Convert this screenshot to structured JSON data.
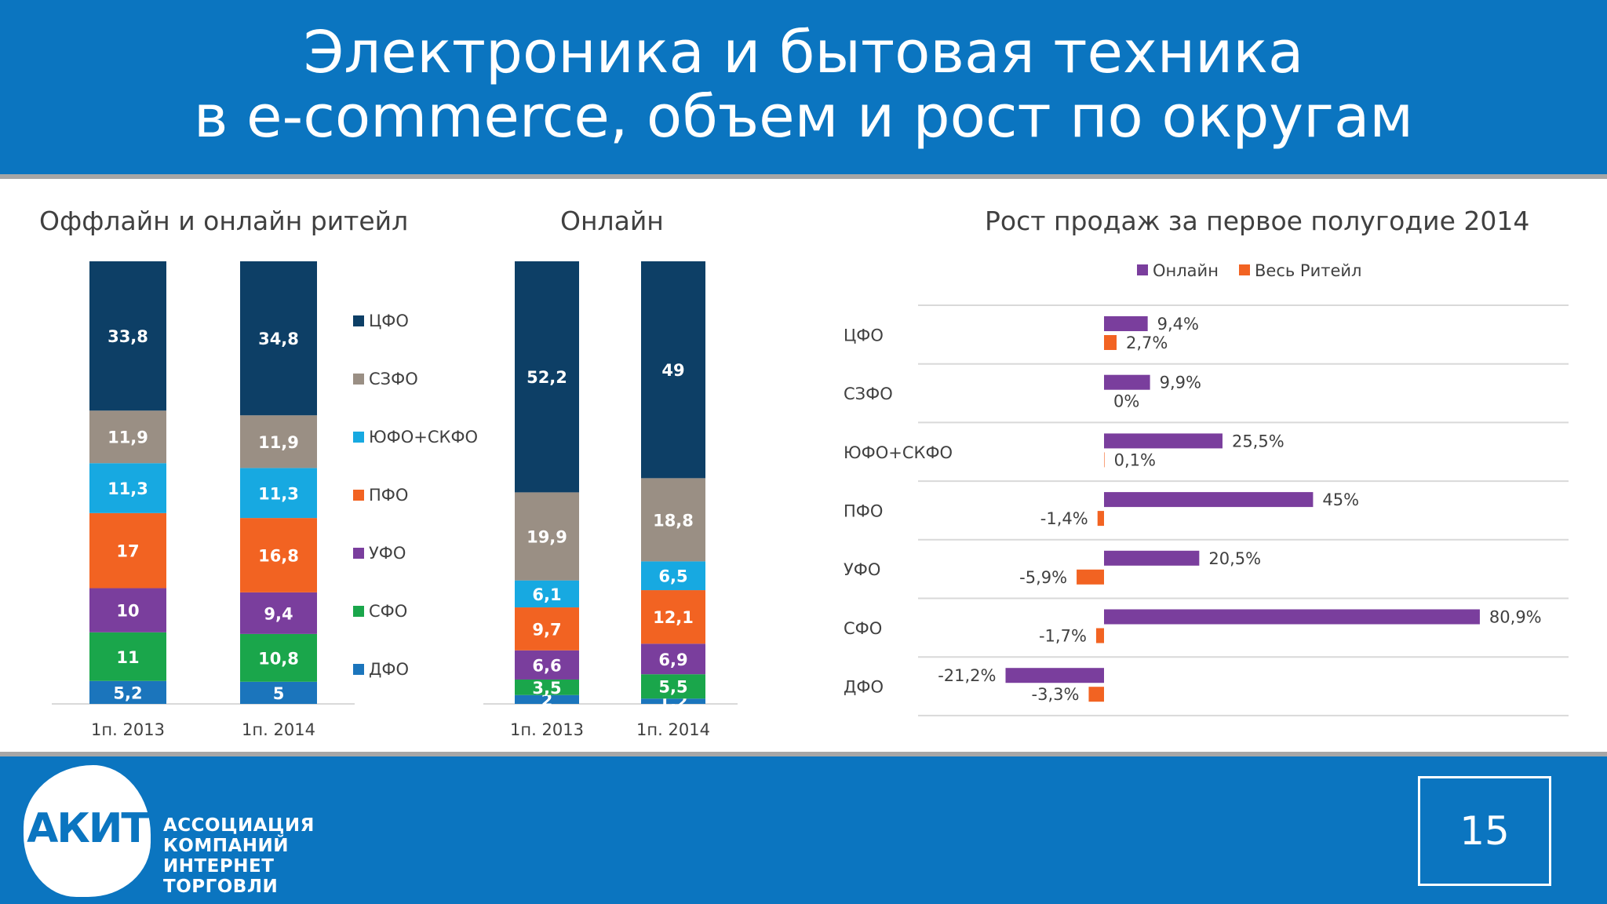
{
  "slide": {
    "title_line1": "Электроника и бытовая техника",
    "title_line2": "в e-commerce, объем и рост по округам",
    "page_number": "15"
  },
  "logo": {
    "mark": "АКИТ",
    "lines": [
      "АССОЦИАЦИЯ",
      "КОМПАНИЙ",
      "ИНТЕРНЕТ",
      "ТОРГОВЛИ"
    ]
  },
  "colors": {
    "header_blue": "#0b75c0",
    "ЦФО": "#0d3f66",
    "СЗФО": "#9a8f84",
    "ЮФО+СКФО": "#17a9e1",
    "ПФО": "#f26322",
    "УФО": "#7a3e9d",
    "СФО": "#1aa64b",
    "ДФО": "#1b75bc",
    "online": "#7a3e9d",
    "retail": "#f26322"
  },
  "chart_data": [
    {
      "type": "bar",
      "stacked": true,
      "title": "Оффлайн и онлайн ритейл",
      "categories": [
        "1п. 2013",
        "1п. 2014"
      ],
      "series": [
        {
          "name": "ДФО",
          "values": [
            5.2,
            5
          ],
          "labels": [
            "5,2",
            "5"
          ]
        },
        {
          "name": "СФО",
          "values": [
            11,
            10.8
          ],
          "labels": [
            "11",
            "10,8"
          ]
        },
        {
          "name": "УФО",
          "values": [
            10,
            9.4
          ],
          "labels": [
            "10",
            "9,4"
          ]
        },
        {
          "name": "ПФО",
          "values": [
            17,
            16.8
          ],
          "labels": [
            "17",
            "16,8"
          ]
        },
        {
          "name": "ЮФО+СКФО",
          "values": [
            11.3,
            11.3
          ],
          "labels": [
            "11,3",
            "11,3"
          ]
        },
        {
          "name": "СЗФО",
          "values": [
            11.9,
            11.9
          ],
          "labels": [
            "11,9",
            "11,9"
          ]
        },
        {
          "name": "ЦФО",
          "values": [
            33.8,
            34.8
          ],
          "labels": [
            "33,8",
            "34,8"
          ]
        }
      ],
      "legend": [
        "ЦФО",
        "СЗФО",
        "ЮФО+СКФО",
        "ПФО",
        "УФО",
        "СФО",
        "ДФО"
      ],
      "legend_position": "right"
    },
    {
      "type": "bar",
      "stacked": true,
      "title": "Онлайн",
      "categories": [
        "1п. 2013",
        "1п. 2014"
      ],
      "series": [
        {
          "name": "ДФО",
          "values": [
            2,
            1.2
          ],
          "labels": [
            "2",
            "1,2"
          ]
        },
        {
          "name": "СФО",
          "values": [
            3.5,
            5.5
          ],
          "labels": [
            "3,5",
            "5,5"
          ]
        },
        {
          "name": "УФО",
          "values": [
            6.6,
            6.9
          ],
          "labels": [
            "6,6",
            "6,9"
          ]
        },
        {
          "name": "ПФО",
          "values": [
            9.7,
            12.1
          ],
          "labels": [
            "9,7",
            "12,1"
          ]
        },
        {
          "name": "ЮФО+СКФО",
          "values": [
            6.1,
            6.5
          ],
          "labels": [
            "6,1",
            "6,5"
          ]
        },
        {
          "name": "СЗФО",
          "values": [
            19.9,
            18.8
          ],
          "labels": [
            "19,9",
            "18,8"
          ]
        },
        {
          "name": "ЦФО",
          "values": [
            52.2,
            49
          ],
          "labels": [
            "52,2",
            "49"
          ]
        }
      ]
    },
    {
      "type": "bar",
      "orientation": "horizontal",
      "title": "Рост продаж за первое полугодие 2014",
      "categories": [
        "ЦФО",
        "СЗФО",
        "ЮФО+СКФО",
        "ПФО",
        "УФО",
        "СФО",
        "ДФО"
      ],
      "series": [
        {
          "name": "Онлайн",
          "values": [
            9.4,
            9.9,
            25.5,
            45,
            20.5,
            80.9,
            -21.2
          ],
          "labels": [
            "9,4%",
            "9,9%",
            "25,5%",
            "45%",
            "20,5%",
            "80,9%",
            "-21,2%"
          ]
        },
        {
          "name": "Весь Ритейл",
          "values": [
            2.7,
            0,
            0.1,
            -1.4,
            -5.9,
            -1.7,
            -3.3
          ],
          "labels": [
            "2,7%",
            "0%",
            "0,1%",
            "-1,4%",
            "-5,9%",
            "-1,7%",
            "-3,3%"
          ]
        }
      ],
      "legend_position": "top",
      "grid": true,
      "xlim": [
        -25,
        85
      ]
    }
  ]
}
